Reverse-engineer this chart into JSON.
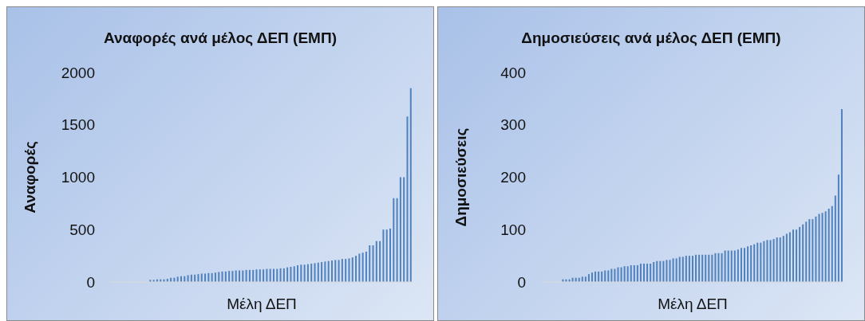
{
  "chart_data": [
    {
      "type": "bar",
      "title": "Αναφορές ανά μέλος ΔΕΠ (ΕΜΠ)",
      "xlabel": "Μέλη ΔΕΠ",
      "ylabel": "Αναφορές",
      "color": "#4f81bd",
      "ylim": [
        0,
        2000
      ],
      "yticks": [
        0,
        500,
        1000,
        1500,
        2000
      ],
      "categories": [
        null,
        null,
        null,
        null,
        null,
        null,
        null,
        null,
        null,
        null,
        null,
        null,
        null,
        null,
        null,
        null,
        null,
        null,
        null,
        null,
        null,
        null,
        null,
        null,
        null,
        null,
        null,
        null,
        null,
        null,
        null,
        null,
        null,
        null,
        null,
        null,
        null,
        null,
        null,
        null,
        null,
        null,
        null,
        null,
        null,
        null,
        null,
        null,
        null,
        null,
        null,
        null,
        null,
        null,
        null,
        null,
        null,
        null,
        null,
        null,
        null,
        null,
        null,
        null,
        null,
        null,
        null,
        null,
        null,
        null,
        null,
        null,
        null,
        null,
        null,
        null,
        null,
        null,
        null,
        null,
        null,
        null,
        null,
        null,
        null,
        null,
        null,
        null
      ],
      "values": [
        0,
        0,
        0,
        0,
        0,
        0,
        0,
        0,
        0,
        0,
        0,
        20,
        20,
        25,
        25,
        25,
        30,
        40,
        40,
        50,
        55,
        55,
        65,
        70,
        70,
        75,
        80,
        80,
        85,
        85,
        90,
        95,
        100,
        100,
        105,
        105,
        110,
        110,
        110,
        115,
        115,
        115,
        120,
        120,
        120,
        125,
        125,
        125,
        125,
        130,
        130,
        140,
        145,
        150,
        160,
        165,
        165,
        170,
        175,
        180,
        185,
        190,
        195,
        200,
        205,
        210,
        210,
        220,
        220,
        225,
        235,
        250,
        270,
        280,
        290,
        350,
        350,
        390,
        390,
        500,
        500,
        510,
        800,
        800,
        1000,
        1000,
        1580,
        1850
      ]
    },
    {
      "type": "bar",
      "title": "Δημοσιεύσεις ανά μέλος ΔΕΠ (ΕΜΠ)",
      "xlabel": "Μέλη ΔΕΠ",
      "ylabel": "Δημοσιεύσεις",
      "color": "#4f81bd",
      "ylim": [
        0,
        400
      ],
      "yticks": [
        0,
        100,
        200,
        300,
        400
      ],
      "categories": [
        null,
        null,
        null,
        null,
        null,
        null,
        null,
        null,
        null,
        null,
        null,
        null,
        null,
        null,
        null,
        null,
        null,
        null,
        null,
        null,
        null,
        null,
        null,
        null,
        null,
        null,
        null,
        null,
        null,
        null,
        null,
        null,
        null,
        null,
        null,
        null,
        null,
        null,
        null,
        null,
        null,
        null,
        null,
        null,
        null,
        null,
        null,
        null,
        null,
        null,
        null,
        null,
        null,
        null,
        null,
        null,
        null,
        null,
        null,
        null,
        null,
        null,
        null,
        null,
        null,
        null,
        null,
        null,
        null,
        null,
        null,
        null,
        null,
        null,
        null,
        null,
        null,
        null,
        null,
        null,
        null,
        null,
        null,
        null,
        null,
        null,
        null,
        null,
        null,
        null,
        null,
        null,
        null
      ],
      "values": [
        0,
        0,
        0,
        0,
        0,
        0,
        5,
        5,
        5,
        8,
        8,
        8,
        10,
        10,
        15,
        18,
        20,
        20,
        20,
        22,
        22,
        25,
        25,
        28,
        28,
        30,
        30,
        32,
        32,
        32,
        35,
        35,
        35,
        35,
        38,
        40,
        40,
        40,
        42,
        42,
        45,
        45,
        48,
        48,
        50,
        50,
        50,
        52,
        52,
        52,
        52,
        52,
        52,
        55,
        55,
        55,
        60,
        60,
        60,
        60,
        62,
        65,
        65,
        68,
        70,
        72,
        75,
        75,
        78,
        80,
        80,
        82,
        85,
        85,
        88,
        92,
        95,
        100,
        100,
        105,
        110,
        115,
        120,
        120,
        125,
        130,
        132,
        135,
        140,
        145,
        165,
        205,
        330
      ]
    }
  ]
}
